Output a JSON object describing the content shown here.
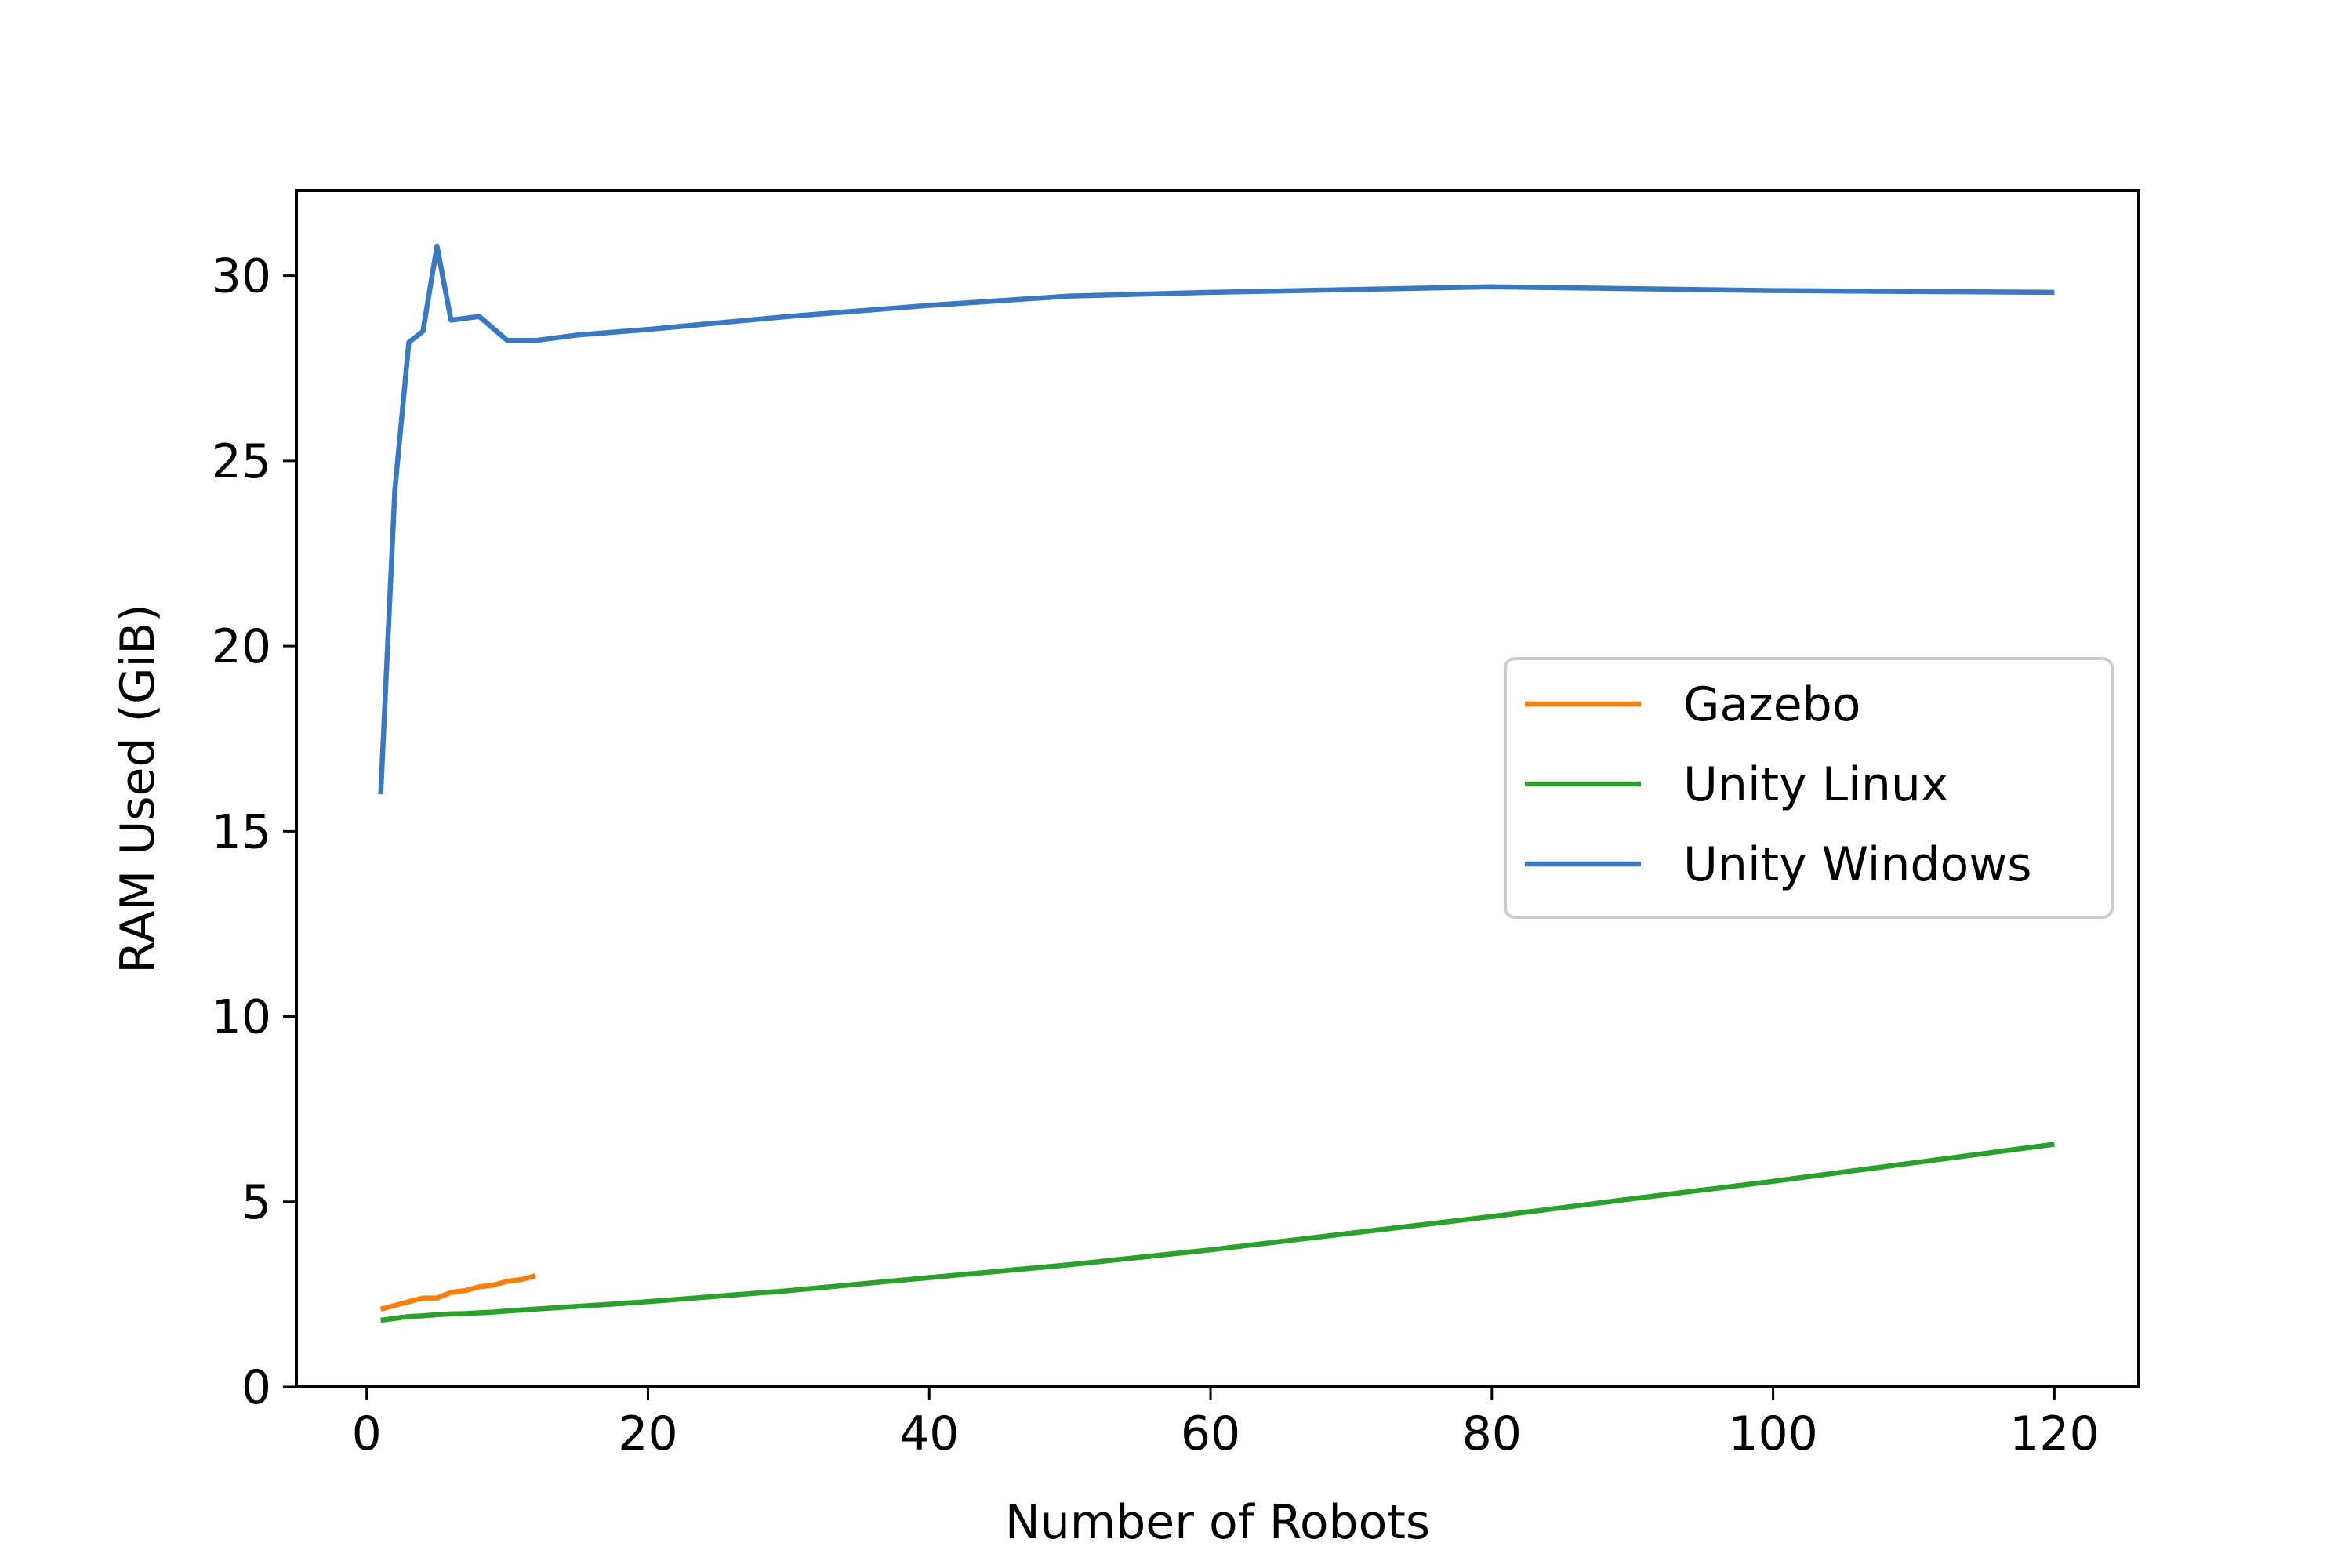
{
  "chart_data": {
    "type": "line",
    "xlabel": "Number of Robots",
    "ylabel": "RAM Used (GiB)",
    "xlim": [
      -5,
      126
    ],
    "ylim": [
      0,
      32.3
    ],
    "xticks": [
      "0",
      "20",
      "40",
      "60",
      "80",
      "100",
      "120"
    ],
    "yticks": [
      "0",
      "5",
      "10",
      "15",
      "20",
      "25",
      "30"
    ],
    "grid": false,
    "legend_position": "center-right",
    "series": [
      {
        "name": "Gazebo",
        "color": "#ff7f0e",
        "x": [
          1,
          2,
          3,
          4,
          5,
          6,
          7,
          8,
          9,
          10,
          11,
          12
        ],
        "y": [
          2.1,
          2.2,
          2.3,
          2.4,
          2.4,
          2.55,
          2.6,
          2.7,
          2.75,
          2.85,
          2.9,
          3.0
        ]
      },
      {
        "name": "Unity Linux",
        "color": "#2ca02c",
        "x": [
          1,
          2,
          3,
          4,
          5,
          6,
          7,
          8,
          9,
          10,
          12,
          14,
          16,
          18,
          20,
          25,
          30,
          40,
          50,
          60,
          70,
          80,
          90,
          100,
          110,
          120
        ],
        "y": [
          1.8,
          1.85,
          1.9,
          1.92,
          1.95,
          1.97,
          1.98,
          2.0,
          2.02,
          2.05,
          2.1,
          2.15,
          2.2,
          2.25,
          2.3,
          2.45,
          2.6,
          2.95,
          3.3,
          3.7,
          4.15,
          4.6,
          5.08,
          5.55,
          6.05,
          6.55
        ]
      },
      {
        "name": "Unity Windows",
        "color": "#3a78bf",
        "x": [
          1,
          2,
          3,
          4,
          5,
          6,
          8,
          10,
          12,
          15,
          20,
          30,
          40,
          50,
          60,
          80,
          100,
          120
        ],
        "y": [
          16.0,
          24.2,
          28.2,
          28.5,
          30.8,
          28.8,
          28.9,
          28.25,
          28.25,
          28.4,
          28.55,
          28.9,
          29.2,
          29.45,
          29.55,
          29.7,
          29.6,
          29.55
        ]
      }
    ]
  }
}
